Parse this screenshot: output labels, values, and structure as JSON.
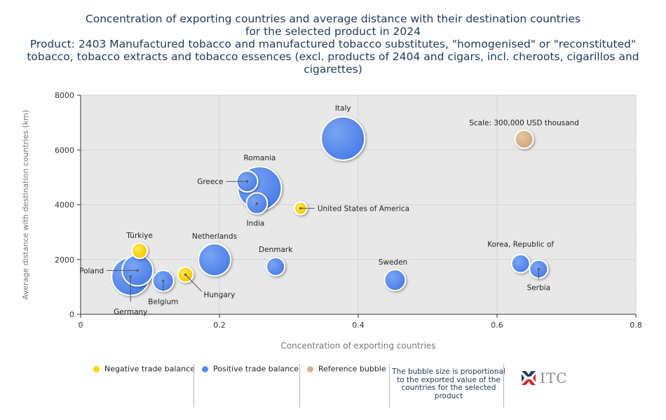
{
  "title": {
    "lines": [
      "Concentration of exporting countries and average distance with their destination countries",
      "for the selected product in 2024",
      "Product: 2403 Manufactured tobacco and manufactured tobacco substitutes, \"homogenised\" or \"reconstituted\"",
      "tobacco, tobacco extracts and tobacco essences (excl. products of 2404 and cigars, incl. cheroots, cigarillos and",
      "cigarettes)"
    ]
  },
  "chart_data": {
    "type": "scatter",
    "xlabel": "Concentration of exporting countries",
    "ylabel": "Average distance with destination countries (km)",
    "xlim": [
      0,
      0.8
    ],
    "ylim": [
      0,
      8000
    ],
    "xticks": [
      0,
      0.2,
      0.4,
      0.6,
      0.8
    ],
    "xtick_labels": [
      "0",
      "0.2",
      "0.4",
      "0.6",
      "0.8"
    ],
    "yticks": [
      0,
      2000,
      4000,
      6000,
      8000
    ],
    "ytick_labels": [
      "0",
      "2000",
      "4000",
      "6000",
      "8000"
    ],
    "grid": true,
    "colors": {
      "negative": "#ffd700",
      "positive": "#5b8def",
      "reference": "#d9b48a"
    },
    "points": [
      {
        "name": "Italy",
        "x": 0.378,
        "y": 6420,
        "size": 31,
        "group": "positive"
      },
      {
        "name": "Romania",
        "x": 0.258,
        "y": 4600,
        "size": 31,
        "group": "positive"
      },
      {
        "name": "Germany",
        "x": 0.072,
        "y": 1380,
        "size": 27,
        "group": "positive"
      },
      {
        "name": "Poland",
        "x": 0.082,
        "y": 1600,
        "size": 22,
        "group": "positive"
      },
      {
        "name": "Netherlands",
        "x": 0.193,
        "y": 1990,
        "size": 23,
        "group": "positive"
      },
      {
        "name": "Greece",
        "x": 0.24,
        "y": 4850,
        "size": 15,
        "group": "positive"
      },
      {
        "name": "India",
        "x": 0.254,
        "y": 4050,
        "size": 15,
        "group": "positive"
      },
      {
        "name": "Belgium",
        "x": 0.119,
        "y": 1220,
        "size": 15,
        "group": "positive"
      },
      {
        "name": "Denmark",
        "x": 0.281,
        "y": 1740,
        "size": 13,
        "group": "positive"
      },
      {
        "name": "Sweden",
        "x": 0.453,
        "y": 1250,
        "size": 15,
        "group": "positive"
      },
      {
        "name": "Korea, Republic of",
        "x": 0.634,
        "y": 1850,
        "size": 13,
        "group": "positive"
      },
      {
        "name": "Serbia",
        "x": 0.66,
        "y": 1650,
        "size": 13,
        "group": "positive"
      },
      {
        "name": "Türkiye",
        "x": 0.085,
        "y": 2320,
        "size": 11,
        "group": "negative"
      },
      {
        "name": "Hungary",
        "x": 0.151,
        "y": 1450,
        "size": 11,
        "group": "negative"
      },
      {
        "name": "United States of America",
        "x": 0.317,
        "y": 3870,
        "size": 9,
        "group": "negative"
      },
      {
        "name": "Scale: 300,000 USD thousand",
        "x": 0.639,
        "y": 6390,
        "size": 13,
        "group": "reference"
      }
    ]
  },
  "legend": {
    "negative": "Negative trade balance",
    "positive": "Positive trade balance",
    "reference": "Reference bubble",
    "note": "The bubble size is proportional to the exported value of the countries for the selected product"
  },
  "logo": {
    "text": "ITC"
  }
}
